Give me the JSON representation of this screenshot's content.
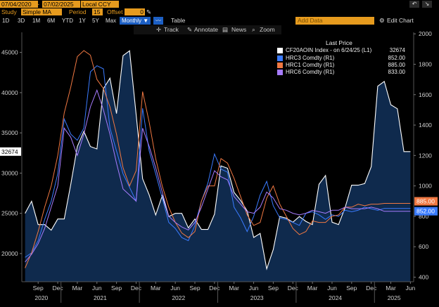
{
  "toolbar": {
    "start_date": "07/04/2020",
    "end_date": "07/02/2025",
    "currency": "Local CCY",
    "study_label": "Study",
    "study_value": "Simple MA",
    "period_label": "Period",
    "period_value": "15",
    "offset_label": "Offset",
    "offset_value": "0",
    "ranges": [
      "1D",
      "3D",
      "1M",
      "6M",
      "YTD",
      "1Y",
      "5Y",
      "Max"
    ],
    "frequency": "Monthly ▼",
    "table_label": "Table",
    "add_data_placeholder": "Add Data",
    "edit_chart_label": "Edit Chart",
    "sub_tools": [
      "Track",
      "Annotate",
      "News",
      "Zoom"
    ]
  },
  "legend": {
    "header": "Last Price",
    "entries": [
      {
        "name": "CF20AOIN Index - on 6/24/25 (L1)",
        "value": "32674",
        "color": "#ffffff"
      },
      {
        "name": "HRC3 Comdty (R1)",
        "value": "852.00",
        "color": "#3a7bff"
      },
      {
        "name": "HRC1 Comdty (R1)",
        "value": "885.00",
        "color": "#f07842"
      },
      {
        "name": "HRC6 Comdty (R1)",
        "value": "833.00",
        "color": "#a77cff"
      }
    ]
  },
  "chart_data": {
    "type": "line",
    "x": [
      "2020-07",
      "2020-08",
      "2020-09",
      "2020-10",
      "2020-11",
      "2020-12",
      "2021-01",
      "2021-02",
      "2021-03",
      "2021-04",
      "2021-05",
      "2021-06",
      "2021-07",
      "2021-08",
      "2021-09",
      "2021-10",
      "2021-11",
      "2021-12",
      "2022-01",
      "2022-02",
      "2022-03",
      "2022-04",
      "2022-05",
      "2022-06",
      "2022-07",
      "2022-08",
      "2022-09",
      "2022-10",
      "2022-11",
      "2022-12",
      "2023-01",
      "2023-02",
      "2023-03",
      "2023-04",
      "2023-05",
      "2023-06",
      "2023-07",
      "2023-08",
      "2023-09",
      "2023-10",
      "2023-11",
      "2023-12",
      "2024-01",
      "2024-02",
      "2024-03",
      "2024-04",
      "2024-05",
      "2024-06",
      "2024-07",
      "2024-08",
      "2024-09",
      "2024-10",
      "2024-11",
      "2024-12",
      "2025-01",
      "2025-02",
      "2025-03",
      "2025-04",
      "2025-05",
      "2025-06"
    ],
    "x_tick_labels": [
      "Sep",
      "Dec",
      "Mar",
      "Jun",
      "Sep",
      "Dec",
      "Mar",
      "Jun",
      "Sep",
      "Dec",
      "Mar",
      "Jun",
      "Sep",
      "Dec",
      "Mar",
      "Jun",
      "Sep",
      "Dec",
      "Mar",
      "Jun"
    ],
    "year_labels": [
      "2020",
      "2021",
      "2022",
      "2023",
      "2024",
      "2025"
    ],
    "left_axis": {
      "ylim": [
        16500,
        47500
      ],
      "ticks": [
        20000,
        25000,
        30000,
        35000,
        40000,
        45000
      ]
    },
    "right_axis": {
      "ylim": [
        370,
        2010
      ],
      "ticks": [
        400,
        600,
        800,
        1000,
        1200,
        1400,
        1600,
        1800,
        2000
      ]
    },
    "series": [
      {
        "name": "CF20AOIN Index - on 6/24/25 (L1)",
        "axis": "left",
        "style": "area",
        "values": [
          25000,
          26500,
          23600,
          23600,
          22900,
          24300,
          24300,
          28600,
          33300,
          35200,
          33300,
          33000,
          40500,
          41800,
          37400,
          44600,
          45200,
          37300,
          29300,
          27300,
          24800,
          27200,
          24600,
          25000,
          25000,
          23200,
          24300,
          23000,
          23000,
          24900,
          30900,
          30600,
          27600,
          26600,
          25300,
          22000,
          22500,
          18100,
          20500,
          24600,
          24400,
          23900,
          24600,
          24000,
          23600,
          28600,
          29700,
          23900,
          23600,
          25700,
          28500,
          28500,
          28700,
          30800,
          40800,
          41400,
          38500,
          38000,
          32674,
          32674
        ]
      },
      {
        "name": "HRC3 Comdty (R1)",
        "axis": "right",
        "style": "line",
        "values": [
          530,
          560,
          640,
          780,
          900,
          1080,
          1440,
          1340,
          1300,
          1380,
          1750,
          1790,
          1770,
          1380,
          1230,
          1080,
          990,
          900,
          1510,
          1230,
          1080,
          920,
          760,
          720,
          660,
          640,
          740,
          900,
          1020,
          1210,
          1110,
          1090,
          860,
          790,
          700,
          800,
          940,
          1030,
          870,
          790,
          780,
          760,
          740,
          820,
          830,
          810,
          780,
          810,
          800,
          840,
          830,
          840,
          860,
          850,
          840,
          852,
          852,
          852,
          852,
          852
        ]
      },
      {
        "name": "HRC1 Comdty (R1)",
        "axis": "right",
        "style": "line",
        "values": [
          460,
          560,
          700,
          860,
          1000,
          1200,
          1480,
          1650,
          1850,
          1890,
          1860,
          1700,
          1640,
          1520,
          1340,
          1120,
          1000,
          1100,
          1620,
          1420,
          1180,
          1000,
          860,
          760,
          690,
          660,
          700,
          900,
          1000,
          1000,
          1180,
          1150,
          1050,
          930,
          810,
          740,
          760,
          920,
          1000,
          880,
          800,
          720,
          680,
          700,
          770,
          760,
          760,
          800,
          810,
          860,
          860,
          880,
          870,
          880,
          880,
          885,
          885,
          885,
          885,
          885
        ]
      },
      {
        "name": "HRC6 Comdty (R1)",
        "axis": "right",
        "style": "line",
        "values": [
          500,
          550,
          620,
          720,
          860,
          1000,
          1380,
          1320,
          1200,
          1340,
          1520,
          1630,
          1500,
          1340,
          1150,
          980,
          940,
          900,
          1380,
          1260,
          1120,
          960,
          800,
          760,
          730,
          710,
          760,
          860,
          980,
          1100,
          1060,
          1040,
          930,
          880,
          830,
          820,
          860,
          960,
          920,
          850,
          840,
          820,
          810,
          820,
          840,
          830,
          820,
          840,
          840,
          860,
          850,
          850,
          850,
          860,
          850,
          833,
          833,
          833,
          833,
          833
        ]
      }
    ],
    "last_value_tags": [
      {
        "axis": "left",
        "value": "32674",
        "color": "#ffffff"
      },
      {
        "axis": "right",
        "value": "885.00",
        "color": "#f07842"
      },
      {
        "axis": "right",
        "value": "852.00",
        "color": "#3a7bff"
      }
    ],
    "grid": false,
    "legend_position": "top-right"
  },
  "colors": {
    "accent": "#e69b1e",
    "area_fill": "#0f2a4d",
    "area_line": "#ffffff",
    "selected_range": "#1c5fc4"
  }
}
